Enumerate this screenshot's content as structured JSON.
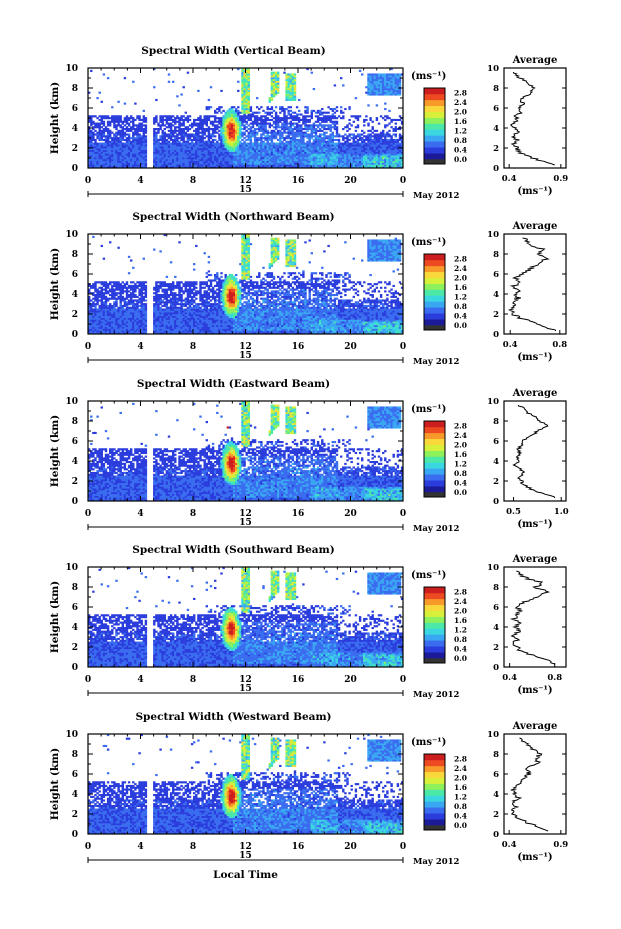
{
  "figure": {
    "xlabel_bottom": "Local Time",
    "colors": {
      "colormap": [
        "#1b1b9a",
        "#2a3cdc",
        "#3a6cf0",
        "#3aa7f2",
        "#3ad7e0",
        "#4be8a8",
        "#8ef05a",
        "#d8f03a",
        "#f8d83a",
        "#f89a2a",
        "#ee4a22",
        "#cc1e1e"
      ],
      "bottom_color": "#333333"
    }
  },
  "chart_data": [
    {
      "type": "heatmap",
      "beam": "vertical",
      "title": "Spectral Width (Vertical Beam)",
      "ylabel": "Height (km)",
      "x_ticks": [
        "0",
        "4",
        "8",
        "12",
        "16",
        "20",
        "0"
      ],
      "xlim": [
        0,
        24
      ],
      "ylim": [
        0,
        10
      ],
      "y_ticks": [
        "0",
        "2",
        "4",
        "6",
        "8",
        "10"
      ],
      "date_label": "15",
      "month_label": "May 2012",
      "colorbar": {
        "unit": "(ms⁻¹)",
        "ticks": [
          "0.0",
          "0.4",
          "0.8",
          "1.2",
          "1.6",
          "2.0",
          "2.4",
          "2.8"
        ],
        "range": [
          0,
          3.0
        ]
      },
      "avg": {
        "title": "Average",
        "xlabel": "(ms⁻¹)",
        "ticks": [
          "0.4",
          "0.9"
        ],
        "xlim": [
          0.35,
          0.95
        ],
        "heights": [
          0.3,
          0.8,
          1.2,
          1.6,
          2.0,
          2.4,
          2.8,
          3.2,
          3.6,
          4.0,
          4.4,
          4.8,
          5.2,
          5.6,
          6.0,
          6.4,
          6.8,
          7.2,
          7.6,
          8.0,
          8.4,
          8.8,
          9.2,
          9.6
        ],
        "values": [
          0.85,
          0.68,
          0.57,
          0.5,
          0.47,
          0.45,
          0.48,
          0.44,
          0.5,
          0.46,
          0.43,
          0.48,
          0.45,
          0.52,
          0.48,
          0.55,
          0.5,
          0.58,
          0.62,
          0.66,
          0.58,
          0.55,
          0.48,
          0.44
        ]
      }
    },
    {
      "type": "heatmap",
      "beam": "northward",
      "title": "Spectral Width (Northward Beam)",
      "ylabel": "Height (km)",
      "x_ticks": [
        "0",
        "4",
        "8",
        "12",
        "16",
        "20",
        "0"
      ],
      "xlim": [
        0,
        24
      ],
      "ylim": [
        0,
        10
      ],
      "y_ticks": [
        "0",
        "2",
        "4",
        "6",
        "8",
        "10"
      ],
      "date_label": "15",
      "month_label": "May 2012",
      "colorbar": {
        "unit": "(ms⁻¹)",
        "ticks": [
          "0.0",
          "0.4",
          "0.8",
          "1.2",
          "1.6",
          "2.0",
          "2.4",
          "2.8"
        ],
        "range": [
          0,
          3.0
        ]
      },
      "avg": {
        "title": "Average",
        "xlabel": "(ms⁻¹)",
        "ticks": [
          "0.4",
          "0.8"
        ],
        "xlim": [
          0.35,
          0.85
        ],
        "heights": [
          0.3,
          0.8,
          1.2,
          1.6,
          2.0,
          2.4,
          2.8,
          3.2,
          3.6,
          4.0,
          4.4,
          4.8,
          5.2,
          5.6,
          6.0,
          6.4,
          6.8,
          7.2,
          7.6,
          8.0,
          8.4,
          8.8,
          9.2,
          9.6
        ],
        "values": [
          0.78,
          0.66,
          0.6,
          0.48,
          0.42,
          0.41,
          0.44,
          0.42,
          0.47,
          0.44,
          0.46,
          0.43,
          0.48,
          0.45,
          0.5,
          0.55,
          0.6,
          0.66,
          0.7,
          0.63,
          0.68,
          0.58,
          0.55,
          0.5
        ]
      }
    },
    {
      "type": "heatmap",
      "beam": "eastward",
      "title": "Spectral Width (Eastward Beam)",
      "ylabel": "Height (km)",
      "x_ticks": [
        "0",
        "4",
        "8",
        "12",
        "16",
        "20",
        "0"
      ],
      "xlim": [
        0,
        24
      ],
      "ylim": [
        0,
        10
      ],
      "y_ticks": [
        "0",
        "2",
        "4",
        "6",
        "8",
        "10"
      ],
      "date_label": "15",
      "month_label": "May 2012",
      "colorbar": {
        "unit": "(ms⁻¹)",
        "ticks": [
          "0.0",
          "0.4",
          "0.8",
          "1.2",
          "1.6",
          "2.0",
          "2.4",
          "2.8"
        ],
        "range": [
          0,
          3.0
        ]
      },
      "avg": {
        "title": "Average",
        "xlabel": "(ms⁻¹)",
        "ticks": [
          "0.5",
          "1.0"
        ],
        "xlim": [
          0.4,
          1.05
        ],
        "heights": [
          0.3,
          0.8,
          1.2,
          1.6,
          2.0,
          2.4,
          2.8,
          3.2,
          3.6,
          4.0,
          4.4,
          4.8,
          5.2,
          5.6,
          6.0,
          6.4,
          6.8,
          7.2,
          7.6,
          8.0,
          8.4,
          8.8,
          9.2,
          9.6
        ],
        "values": [
          0.95,
          0.78,
          0.68,
          0.62,
          0.58,
          0.55,
          0.6,
          0.56,
          0.52,
          0.55,
          0.53,
          0.57,
          0.55,
          0.6,
          0.58,
          0.66,
          0.72,
          0.8,
          0.85,
          0.78,
          0.72,
          0.66,
          0.6,
          0.55
        ]
      }
    },
    {
      "type": "heatmap",
      "beam": "southward",
      "title": "Spectral Width (Southward Beam)",
      "ylabel": "Height (km)",
      "x_ticks": [
        "0",
        "4",
        "8",
        "12",
        "16",
        "20",
        "0"
      ],
      "xlim": [
        0,
        24
      ],
      "ylim": [
        0,
        10
      ],
      "y_ticks": [
        "0",
        "2",
        "4",
        "6",
        "8",
        "10"
      ],
      "date_label": "15",
      "month_label": "May 2012",
      "colorbar": {
        "unit": "(ms⁻¹)",
        "ticks": [
          "0.0",
          "0.4",
          "0.8",
          "1.2",
          "1.6",
          "2.0",
          "2.4",
          "2.8"
        ],
        "range": [
          0,
          3.0
        ]
      },
      "avg": {
        "title": "Average",
        "xlabel": "(ms⁻¹)",
        "ticks": [
          "0.4",
          "0.8"
        ],
        "xlim": [
          0.35,
          0.9
        ],
        "heights": [
          0.3,
          0.8,
          1.2,
          1.6,
          2.0,
          2.4,
          2.8,
          3.2,
          3.6,
          4.0,
          4.4,
          4.8,
          5.2,
          5.6,
          6.0,
          6.4,
          6.8,
          7.2,
          7.6,
          8.0,
          8.4,
          8.8,
          9.2,
          9.6
        ],
        "values": [
          0.82,
          0.7,
          0.6,
          0.5,
          0.46,
          0.44,
          0.47,
          0.43,
          0.49,
          0.45,
          0.48,
          0.44,
          0.46,
          0.5,
          0.47,
          0.52,
          0.6,
          0.68,
          0.74,
          0.62,
          0.7,
          0.56,
          0.5,
          0.46
        ]
      }
    },
    {
      "type": "heatmap",
      "beam": "westward",
      "title": "Spectral Width (Westward Beam)",
      "ylabel": "Height (km)",
      "x_ticks": [
        "0",
        "4",
        "8",
        "12",
        "16",
        "20",
        "0"
      ],
      "xlim": [
        0,
        24
      ],
      "ylim": [
        0,
        10
      ],
      "y_ticks": [
        "0",
        "2",
        "4",
        "6",
        "8",
        "10"
      ],
      "date_label": "15",
      "month_label": "May 2012",
      "colorbar": {
        "unit": "(ms⁻¹)",
        "ticks": [
          "0.0",
          "0.4",
          "0.8",
          "1.2",
          "1.6",
          "2.0",
          "2.4",
          "2.8"
        ],
        "range": [
          0,
          3.0
        ]
      },
      "avg": {
        "title": "Average",
        "xlabel": "(ms⁻¹)",
        "ticks": [
          "0.4",
          "0.9"
        ],
        "xlim": [
          0.35,
          0.95
        ],
        "heights": [
          0.3,
          0.8,
          1.2,
          1.6,
          2.0,
          2.4,
          2.8,
          3.2,
          3.6,
          4.0,
          4.4,
          4.8,
          5.2,
          5.6,
          6.0,
          6.4,
          6.8,
          7.2,
          7.6,
          8.0,
          8.4,
          8.8,
          9.2,
          9.6
        ],
        "values": [
          0.8,
          0.66,
          0.56,
          0.48,
          0.45,
          0.44,
          0.47,
          0.43,
          0.49,
          0.46,
          0.44,
          0.48,
          0.52,
          0.55,
          0.6,
          0.56,
          0.62,
          0.68,
          0.66,
          0.7,
          0.64,
          0.6,
          0.54,
          0.5
        ]
      }
    }
  ]
}
